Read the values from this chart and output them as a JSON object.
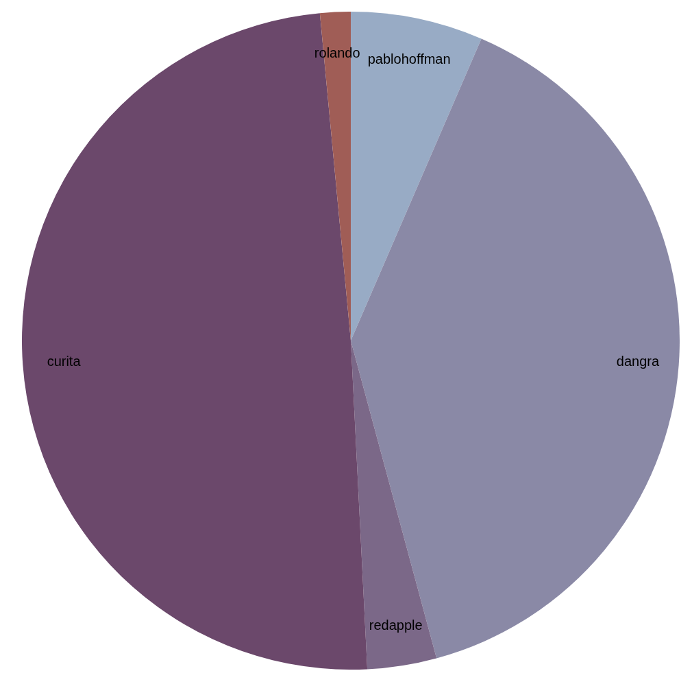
{
  "chart_data": {
    "type": "pie",
    "categories": [
      "pablohoffman",
      "dangra",
      "redapple",
      "curita",
      "rolando"
    ],
    "values": [
      6.5,
      39.3,
      3.4,
      49.3,
      1.5
    ],
    "colors": [
      "#98abc5",
      "#8a89a6",
      "#7b6888",
      "#6b486b",
      "#a05d56"
    ]
  }
}
